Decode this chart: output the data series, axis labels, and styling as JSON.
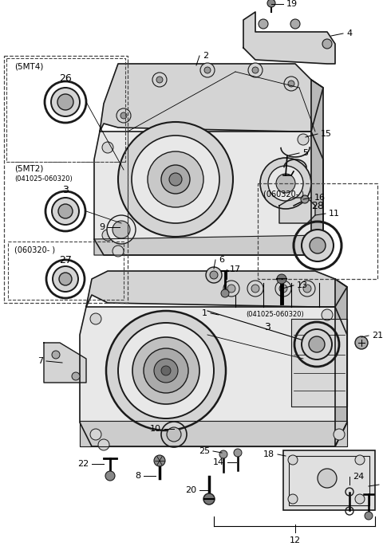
{
  "bg_color": "#ffffff",
  "line_color": "#1a1a1a",
  "fig_width": 4.8,
  "fig_height": 6.9,
  "dpi": 100,
  "dashed_box_color": "#444444",
  "gray_fill": "#d4d4d4",
  "light_gray": "#e8e8e8",
  "mid_gray": "#b8b8b8"
}
